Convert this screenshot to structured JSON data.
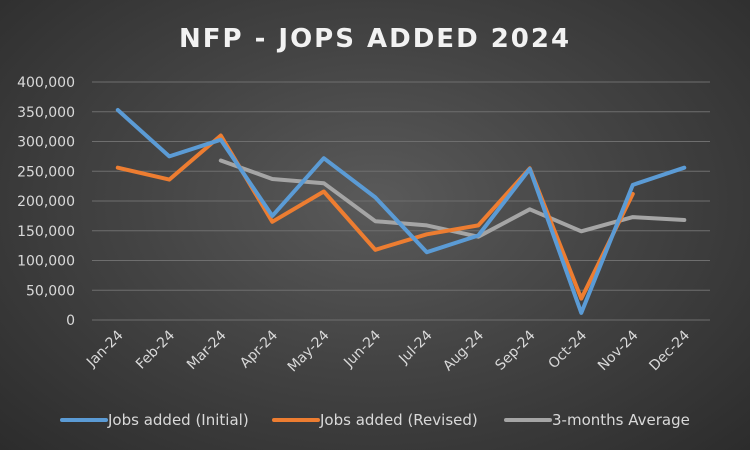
{
  "chart_data": {
    "type": "line",
    "title": "NFP - JOPS ADDED 2024",
    "xlabel": "",
    "ylabel": "",
    "categories": [
      "Jan-24",
      "Feb-24",
      "Mar-24",
      "Apr-24",
      "May-24",
      "Jun-24",
      "Jul-24",
      "Aug-24",
      "Sep-24",
      "Oct-24",
      "Nov-24",
      "Dec-24"
    ],
    "ylim": [
      0,
      400000
    ],
    "yticks": [
      0,
      50000,
      100000,
      150000,
      200000,
      250000,
      300000,
      350000,
      400000
    ],
    "ytick_labels": [
      "0",
      "50,000",
      "100,000",
      "150,000",
      "200,000",
      "250,000",
      "300,000",
      "350,000",
      "400,000"
    ],
    "grid": true,
    "legend_position": "bottom",
    "series": [
      {
        "name": "Jobs added (Initial)",
        "color": "#5b9bd5",
        "values": [
          353000,
          275000,
          303000,
          175000,
          272000,
          206000,
          114000,
          142000,
          254000,
          12000,
          227000,
          256000
        ]
      },
      {
        "name": "Jobs added (Revised)",
        "color": "#ed7d31",
        "values": [
          256000,
          236000,
          310000,
          165000,
          216000,
          118000,
          144000,
          159000,
          255000,
          36000,
          212000,
          null
        ]
      },
      {
        "name": "3-months Average",
        "color": "#a5a5a5",
        "values": [
          null,
          null,
          268000,
          237000,
          230000,
          166000,
          159000,
          140000,
          186000,
          149000,
          173000,
          168000
        ]
      }
    ]
  }
}
